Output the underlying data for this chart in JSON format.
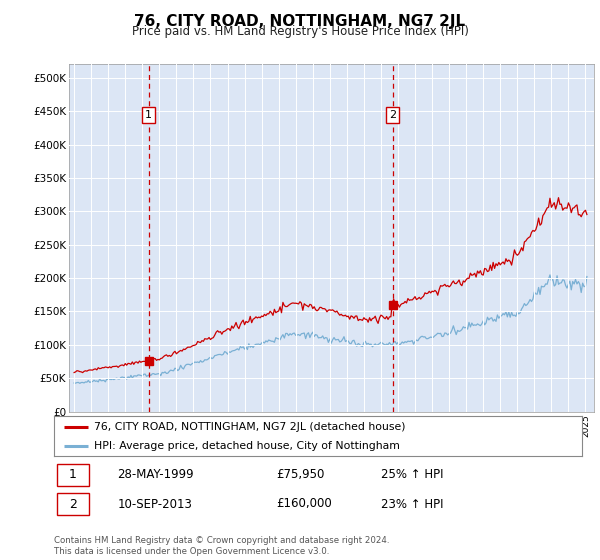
{
  "title": "76, CITY ROAD, NOTTINGHAM, NG7 2JL",
  "subtitle": "Price paid vs. HM Land Registry's House Price Index (HPI)",
  "legend_line1": "76, CITY ROAD, NOTTINGHAM, NG7 2JL (detached house)",
  "legend_line2": "HPI: Average price, detached house, City of Nottingham",
  "sale1_date": "28-MAY-1999",
  "sale1_price": "£75,950",
  "sale1_hpi": "25% ↑ HPI",
  "sale2_date": "10-SEP-2013",
  "sale2_price": "£160,000",
  "sale2_hpi": "23% ↑ HPI",
  "footer": "Contains HM Land Registry data © Crown copyright and database right 2024.\nThis data is licensed under the Open Government Licence v3.0.",
  "bg_color": "#dce6f5",
  "red_color": "#cc0000",
  "blue_color": "#7ab0d4",
  "sale1_year": 1999.37,
  "sale2_year": 2013.69,
  "sale1_value": 75950,
  "sale2_value": 160000,
  "ylim_min": 0,
  "ylim_max": 520000,
  "yticks": [
    0,
    50000,
    100000,
    150000,
    200000,
    250000,
    300000,
    350000,
    400000,
    450000,
    500000
  ],
  "ytick_labels": [
    "£0",
    "£50K",
    "£100K",
    "£150K",
    "£200K",
    "£250K",
    "£300K",
    "£350K",
    "£400K",
    "£450K",
    "£500K"
  ],
  "xmin": 1994.7,
  "xmax": 2025.5
}
